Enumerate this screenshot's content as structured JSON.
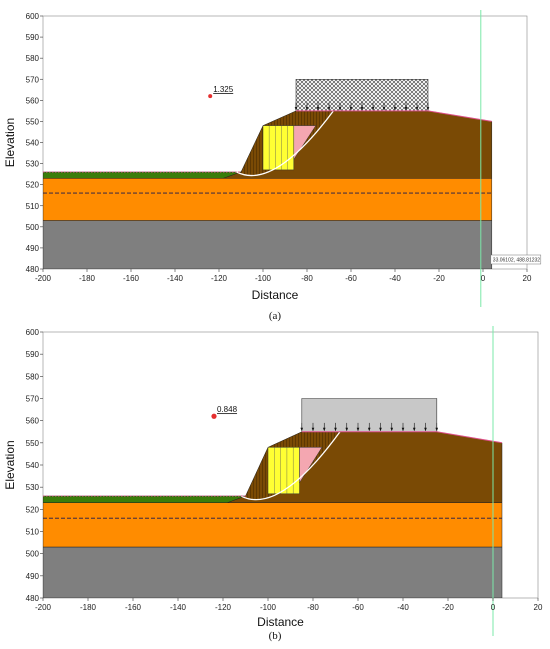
{
  "chart_data": [
    {
      "panel": "(a)",
      "type": "slope-stability",
      "xlabel": "Distance",
      "ylabel": "Elevation",
      "xlim": [
        -200,
        20
      ],
      "ylim": [
        480,
        600
      ],
      "xticks": [
        -200,
        -180,
        -160,
        -140,
        -120,
        -100,
        -80,
        -60,
        -40,
        -20,
        0,
        20
      ],
      "yticks": [
        480,
        490,
        500,
        510,
        520,
        530,
        540,
        550,
        560,
        570,
        580,
        590,
        600
      ],
      "factor_of_safety": "1.325",
      "fos_point": [
        -124,
        562
      ],
      "load_style": "hatched",
      "coordinate_readout": "33.06102, 488.81232",
      "vertical_line_x": -1,
      "colors": {
        "embankment": "#7a4a05",
        "foundation": "#ff8c00",
        "bedrock": "#7f7f7f",
        "topsoil": "#3a7d0a",
        "column": "#ffff33",
        "wedge": "#f4a7b1",
        "load": "#ececec",
        "vline": "#7be8a8"
      }
    },
    {
      "panel": "(b)",
      "type": "slope-stability",
      "xlabel": "Distance",
      "ylabel": "Elevation",
      "xlim": [
        -200,
        20
      ],
      "ylim": [
        480,
        600
      ],
      "xticks": [
        -200,
        -180,
        -160,
        -140,
        -120,
        -100,
        -80,
        -60,
        -40,
        -20,
        0,
        20
      ],
      "yticks": [
        480,
        490,
        500,
        510,
        520,
        530,
        540,
        550,
        560,
        570,
        580,
        590,
        600
      ],
      "factor_of_safety": "0.848",
      "fos_point": [
        -124,
        562
      ],
      "load_style": "solid",
      "coordinate_readout": "",
      "vertical_line_x": 0,
      "colors": {
        "embankment": "#7a4a05",
        "foundation": "#ff8c00",
        "bedrock": "#7f7f7f",
        "topsoil": "#3a7d0a",
        "column": "#ffff33",
        "wedge": "#f4a7b1",
        "load": "#c8c8c8",
        "vline": "#7be8a8"
      }
    }
  ],
  "captions": [
    "(a)",
    "(b)"
  ]
}
